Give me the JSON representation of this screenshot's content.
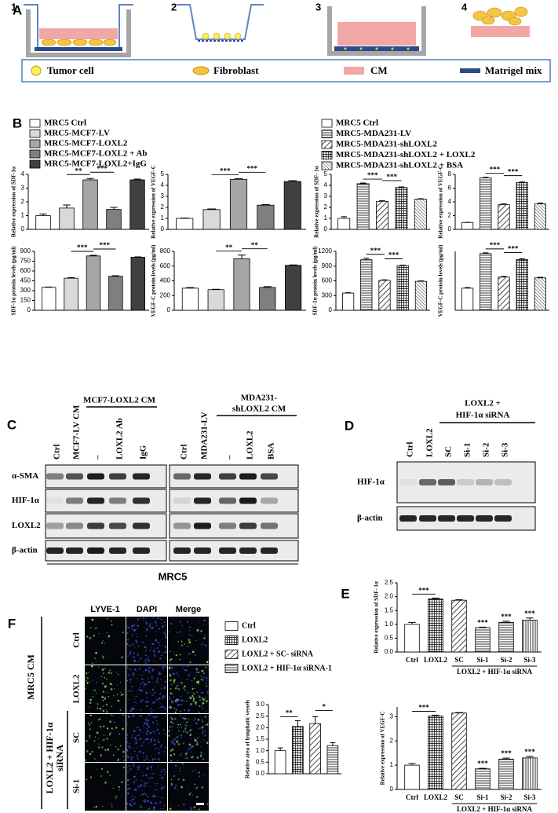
{
  "panel_labels": [
    "A",
    "B",
    "C",
    "D",
    "E",
    "F"
  ],
  "schematic": {
    "steps": [
      "1",
      "2",
      "3",
      "4"
    ],
    "legend": [
      "Tumor cell",
      "Fibroblast",
      "CM",
      "Matrigel mix"
    ]
  },
  "legends": {
    "B_left": {
      "entries": [
        "MRC5 Ctrl",
        "MRC5-MCF7-LV",
        "MRC5-MCF7-LOXL2",
        "MRC5-MCF7-LOXL2 + Ab",
        "MRC5-MCF7-LOXL2+IgG"
      ],
      "fills": [
        "#ffffff",
        "#d9d9d9",
        "#a6a6a6",
        "#7f7f7f",
        "#404040"
      ]
    },
    "B_right": {
      "entries": [
        "MRC5 Ctrl",
        "MRC5-MDA231-LV",
        "MRC5-MDA231-shLOXL2",
        "MRC5-MDA231-shLOXL2 + LOXL2",
        "MRC5-MDA231-shLOXL2 + BSA"
      ],
      "fills": [
        "none",
        "hlines",
        "diag",
        "grid",
        "diag-dense"
      ]
    },
    "F": {
      "entries": [
        "Ctrl",
        "LOXL2",
        "LOXL2 + SC- siRNA",
        "LOXL2 + HIF-1α siRNA-1"
      ],
      "fills": [
        "none",
        "grid",
        "diag",
        "hlines"
      ]
    }
  },
  "chart_data": [
    {
      "type": "bar",
      "ylabel": "Relative expression of SDF-1α",
      "values": [
        1.0,
        1.55,
        3.6,
        1.45,
        3.6
      ],
      "errors": [
        0.12,
        0.22,
        0.1,
        0.15,
        0.06
      ],
      "fills": [
        "#ffffff",
        "#d9d9d9",
        "#a6a6a6",
        "#7f7f7f",
        "#404040"
      ],
      "ylim": [
        0,
        4
      ],
      "yticks": [
        0,
        1,
        2,
        3,
        4
      ],
      "annotations": [
        "**",
        "***"
      ]
    },
    {
      "type": "bar",
      "ylabel": "Relative expression of VEGF-C",
      "values": [
        1.0,
        1.8,
        4.55,
        2.2,
        4.35
      ],
      "errors": [
        0.03,
        0.06,
        0.07,
        0.06,
        0.08
      ],
      "fills": [
        "#ffffff",
        "#d9d9d9",
        "#a6a6a6",
        "#7f7f7f",
        "#404040"
      ],
      "ylim": [
        0,
        5
      ],
      "yticks": [
        0,
        1,
        2,
        3,
        4,
        5
      ],
      "annotations": [
        "***",
        "***"
      ]
    },
    {
      "type": "bar",
      "ylabel": "Relative expression of SDF- 1α",
      "values": [
        1.0,
        4.15,
        2.55,
        3.8,
        2.75
      ],
      "errors": [
        0.15,
        0.06,
        0.07,
        0.06,
        0.04
      ],
      "fills": [
        "none",
        "hlines",
        "diag",
        "grid",
        "diag-dense"
      ],
      "ylim": [
        0,
        5
      ],
      "yticks": [
        0,
        1,
        2,
        3,
        4,
        5
      ],
      "annotations": [
        "***",
        "***"
      ]
    },
    {
      "type": "bar",
      "ylabel": "Relative expression of VEGF-C",
      "values": [
        1.0,
        7.5,
        3.6,
        6.8,
        3.7
      ],
      "errors": [
        0.02,
        0.08,
        0.1,
        0.1,
        0.15
      ],
      "fills": [
        "none",
        "hlines",
        "diag",
        "grid",
        "diag-dense"
      ],
      "ylim": [
        0,
        8
      ],
      "yticks": [
        0,
        2,
        4,
        6,
        8
      ],
      "annotations": [
        "***",
        "***"
      ]
    },
    {
      "type": "bar",
      "ylabel": "SDF-1α protein levels (pg/ml)",
      "values": [
        350,
        490,
        830,
        520,
        810
      ],
      "errors": [
        5,
        8,
        10,
        8,
        6
      ],
      "fills": [
        "#ffffff",
        "#d9d9d9",
        "#a6a6a6",
        "#7f7f7f",
        "#404040"
      ],
      "ylim": [
        0,
        900
      ],
      "yticks": [
        0,
        150,
        300,
        450,
        600,
        750,
        900
      ],
      "annotations": [
        "***",
        "***"
      ]
    },
    {
      "type": "bar",
      "ylabel": "VEGF-C protein levels (pg/ml)",
      "values": [
        300,
        280,
        700,
        310,
        610
      ],
      "errors": [
        8,
        5,
        50,
        12,
        6
      ],
      "fills": [
        "#ffffff",
        "#d9d9d9",
        "#a6a6a6",
        "#7f7f7f",
        "#404040"
      ],
      "ylim": [
        0,
        800
      ],
      "yticks": [
        0,
        200,
        400,
        600,
        800
      ],
      "annotations": [
        "**",
        "**"
      ]
    },
    {
      "type": "bar",
      "ylabel": "SDF-1α protein levels (pg/ml)",
      "values": [
        350,
        1030,
        610,
        910,
        590
      ],
      "errors": [
        8,
        30,
        10,
        10,
        8
      ],
      "fills": [
        "none",
        "hlines",
        "diag",
        "grid",
        "diag-dense"
      ],
      "ylim": [
        0,
        1200
      ],
      "yticks": [
        0,
        300,
        600,
        900,
        1200
      ],
      "annotations": [
        "***",
        "***"
      ]
    },
    {
      "type": "bar",
      "ylabel": "VEGF-C protein levels (pg/ml)",
      "values": [
        300,
        770,
        450,
        690,
        440
      ],
      "errors": [
        8,
        10,
        10,
        10,
        8
      ],
      "fills": [
        "none",
        "hlines",
        "diag",
        "grid",
        "diag-dense"
      ],
      "ylim": [
        0,
        800
      ],
      "annotations": [
        "***",
        "***"
      ]
    },
    {
      "type": "bar",
      "ylabel": "Relative expression of SDF- 1α",
      "categories": [
        "Ctrl",
        "LOXL2",
        "SC",
        "Si-1",
        "Si-2",
        "Si-3"
      ],
      "group_label": "LOXL2 + HIF-1α siRNA",
      "values": [
        1.0,
        1.92,
        1.87,
        0.88,
        1.07,
        1.15
      ],
      "errors": [
        0.07,
        0.03,
        0.02,
        0.02,
        0.04,
        0.08
      ],
      "fills": [
        "none",
        "grid",
        "diag",
        "hlines",
        "hlines",
        "vlines"
      ],
      "ylim": [
        0,
        2.5
      ],
      "yticks": [
        {
          "value": 0,
          "label": "0.0"
        },
        {
          "value": 0.5,
          "label": "0.5"
        },
        {
          "value": 1,
          "label": "1.0"
        },
        {
          "value": 1.5,
          "label": "1.5"
        },
        {
          "value": 2,
          "label": "2.0"
        },
        {
          "value": 2.5,
          "label": "2.5"
        }
      ],
      "annotations": [
        "***",
        "***",
        "***",
        "***"
      ]
    },
    {
      "type": "bar",
      "ylabel": "Relative expression of VEGF-C",
      "categories": [
        "Ctrl",
        "LOXL2",
        "SC",
        "Si-1",
        "Si-2",
        "Si-3"
      ],
      "group_label": "LOXL2 + HIF-1α siRNA",
      "values": [
        1.0,
        3.02,
        3.15,
        0.85,
        1.25,
        1.3
      ],
      "errors": [
        0.07,
        0.04,
        0.02,
        0.02,
        0.04,
        0.06
      ],
      "fills": [
        "none",
        "grid",
        "diag",
        "hlines",
        "hlines",
        "vlines"
      ],
      "ylim": [
        0,
        3.4
      ],
      "yticks": [
        0,
        1,
        2,
        3
      ],
      "annotations": [
        "***",
        "***",
        "***",
        "***"
      ]
    },
    {
      "type": "bar",
      "ylabel": "Relative area of lymphatic vessels",
      "values": [
        1.0,
        2.05,
        2.17,
        1.22
      ],
      "errors": [
        0.12,
        0.25,
        0.3,
        0.13
      ],
      "fills": [
        "none",
        "grid",
        "diag",
        "hlines"
      ],
      "ylim": [
        0,
        3
      ],
      "yticks": [
        {
          "value": 0,
          "label": "0.0"
        },
        {
          "value": 0.5,
          "label": "0.5"
        },
        {
          "value": 1,
          "label": "1.0"
        },
        {
          "value": 1.5,
          "label": "1.5"
        },
        {
          "value": 2,
          "label": "2.0"
        },
        {
          "value": 2.5,
          "label": "2.5"
        },
        {
          "value": 3,
          "label": "3.0"
        }
      ],
      "annotations": [
        "**",
        "*"
      ]
    }
  ],
  "blots": {
    "C": {
      "left_header": "MCF7-LOXL2 CM",
      "right_header": [
        "MDA231-",
        "shLOXL2 CM"
      ],
      "lanes_left": [
        "Ctrl",
        "MCF7-LV CM",
        "–",
        "LOXL2 Ab",
        "IgG"
      ],
      "lanes_right": [
        "Ctrl",
        "MDA231-LV",
        "–",
        "LOXL2",
        "BSA"
      ],
      "rows": [
        "α-SMA",
        "HIF-1α",
        "LOXL2",
        "β-actin"
      ],
      "caption": "MRC5"
    },
    "D": {
      "header": [
        "LOXL2 +",
        "HIF-1α siRNA"
      ],
      "lanes": [
        "Ctrl",
        "LOXL2",
        "SC",
        "Si-1",
        "Si-2",
        "Si-3"
      ],
      "rows": [
        "HIF-1α",
        "β-actin"
      ]
    }
  },
  "images": {
    "columns": [
      "LYVE-1",
      "DAPI",
      "Merge"
    ],
    "rows": [
      "Ctrl",
      "LOXL2",
      "SC",
      "Si-1"
    ],
    "groups": [
      "MRC5 CM",
      [
        "LOXL2 + HIF-1α",
        "siRNA"
      ]
    ]
  }
}
